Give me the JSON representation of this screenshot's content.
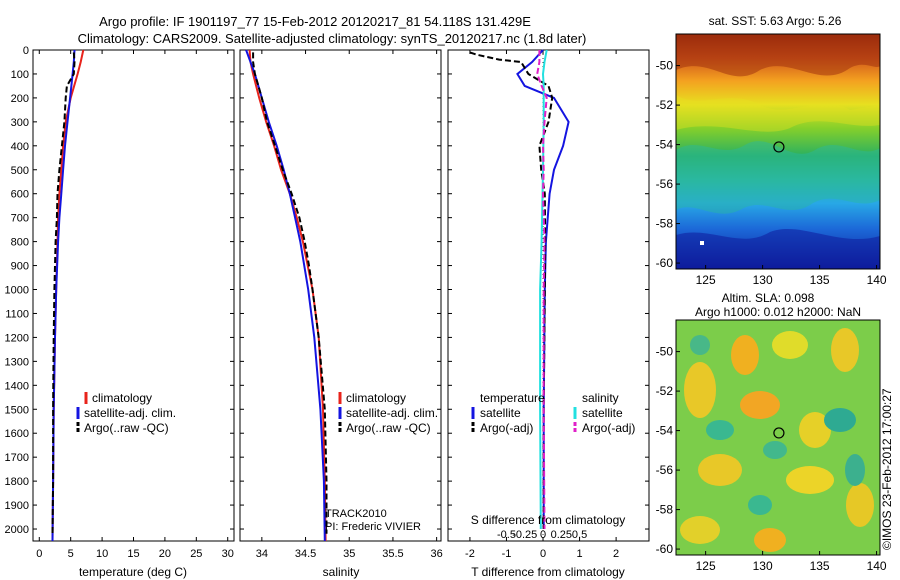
{
  "header": {
    "title_line1": "Argo profile: IF 1901197_77 15-Feb-2012 20120217_81 54.118S 131.429E",
    "title_line2": "Climatology: CARS2009. Satellite-adjusted climatology: synTS_20120217.nc (1.8d later)"
  },
  "colors": {
    "climatology": "#e8231b",
    "satellite": "#1414e0",
    "argo": "#000000",
    "sat_salinity": "#22e0e0",
    "argo_salinity": "#e020c8"
  },
  "depth_axis": {
    "min": 0,
    "max": 2050,
    "ticks": [
      0,
      100,
      200,
      300,
      400,
      500,
      600,
      700,
      800,
      900,
      1000,
      1100,
      1200,
      1300,
      1400,
      1500,
      1600,
      1700,
      1800,
      1900,
      2000
    ],
    "tick_labels": [
      "0",
      "100",
      "200",
      "300",
      "400",
      "500",
      "600",
      "700",
      "800",
      "900",
      "1000",
      "1100",
      "1200",
      "1300",
      "1400",
      "1500",
      "1600",
      "1700",
      "1800",
      "1900",
      "2000"
    ]
  },
  "chart_data": [
    {
      "type": "line",
      "title": "temperature profile",
      "xlabel": "temperature (deg C)",
      "xlim": [
        -1,
        31
      ],
      "ylim": [
        2050,
        0
      ],
      "xticks": [
        0,
        5,
        10,
        15,
        20,
        25,
        30
      ],
      "xtick_labels": [
        "0",
        "5",
        "10",
        "15",
        "20",
        "25",
        "30"
      ],
      "legend": {
        "position": "lower-middle",
        "entries": [
          "climatology",
          "satellite-adj. clim.",
          "Argo(..raw -QC)"
        ]
      },
      "series": [
        {
          "name": "climatology",
          "color": "#e8231b",
          "depth": [
            0,
            50,
            100,
            200,
            300,
            400,
            500,
            600,
            700,
            800,
            1000,
            1200,
            1500,
            1800,
            2050
          ],
          "values": [
            7.0,
            6.6,
            6.1,
            5.0,
            4.2,
            3.8,
            3.5,
            3.2,
            3.0,
            2.9,
            2.7,
            2.5,
            2.3,
            2.2,
            2.1
          ]
        },
        {
          "name": "satellite-adj. clim.",
          "color": "#1414e0",
          "depth": [
            0,
            50,
            100,
            200,
            300,
            400,
            500,
            600,
            700,
            800,
            1000,
            1200,
            1500,
            1800,
            2050
          ],
          "values": [
            5.6,
            5.5,
            5.3,
            4.9,
            4.5,
            4.1,
            3.8,
            3.5,
            3.2,
            3.0,
            2.7,
            2.5,
            2.3,
            2.2,
            2.1
          ]
        },
        {
          "name": "Argo(..raw -QC)",
          "color": "#000000",
          "depth": [
            10,
            50,
            100,
            150,
            200,
            300,
            400,
            500,
            600,
            700,
            800,
            900,
            1000,
            1200,
            1500,
            1800,
            2020
          ],
          "values": [
            5.5,
            5.6,
            5.5,
            4.4,
            4.2,
            4.0,
            3.6,
            3.2,
            2.9,
            2.8,
            2.6,
            2.5,
            2.4,
            2.3,
            2.2,
            2.2,
            2.1
          ]
        }
      ]
    },
    {
      "type": "line",
      "title": "salinity profile",
      "xlabel": "salinity",
      "xlim": [
        33.75,
        36.05
      ],
      "ylim": [
        2050,
        0
      ],
      "xticks": [
        34,
        34.5,
        35,
        35.5,
        36
      ],
      "xtick_labels": [
        "34",
        "34.5",
        "35",
        "35.5",
        "36"
      ],
      "legend": {
        "position": "lower-right",
        "entries": [
          "climatology",
          "satellite-adj. clim.",
          "Argo(..raw -QC)"
        ]
      },
      "annotation": [
        "TRACK2010",
        "PI: Frederic VIVIER"
      ],
      "series": [
        {
          "name": "climatology",
          "color": "#e8231b",
          "depth": [
            0,
            50,
            100,
            200,
            300,
            400,
            500,
            600,
            700,
            800,
            1000,
            1200,
            1500,
            1800,
            2050
          ],
          "values": [
            33.86,
            33.87,
            33.9,
            33.97,
            34.05,
            34.14,
            34.22,
            34.32,
            34.4,
            34.47,
            34.58,
            34.65,
            34.7,
            34.72,
            34.73
          ]
        },
        {
          "name": "satellite-adj. clim.",
          "color": "#1414e0",
          "depth": [
            0,
            50,
            100,
            200,
            300,
            400,
            500,
            600,
            700,
            800,
            1000,
            1200,
            1500,
            1800,
            2050
          ],
          "values": [
            33.82,
            33.87,
            33.92,
            34.0,
            34.08,
            34.17,
            34.25,
            34.32,
            34.38,
            34.44,
            34.53,
            34.6,
            34.67,
            34.71,
            34.72
          ]
        },
        {
          "name": "Argo(..raw -QC)",
          "color": "#000000",
          "depth": [
            10,
            50,
            100,
            150,
            200,
            300,
            400,
            500,
            600,
            700,
            800,
            900,
            1000,
            1200,
            1500,
            1800,
            2020
          ],
          "values": [
            33.9,
            33.9,
            33.92,
            33.96,
            34.0,
            34.06,
            34.15,
            34.24,
            34.34,
            34.43,
            34.49,
            34.54,
            34.58,
            34.65,
            34.72,
            34.74,
            34.74
          ]
        }
      ]
    },
    {
      "type": "line",
      "title": "difference from climatology",
      "xlabel": "T difference from climatology",
      "x2label": "S difference from climatology",
      "xlim": [
        -2.6,
        2.9
      ],
      "ylim": [
        2050,
        0
      ],
      "xticks": [
        -2,
        -1,
        0,
        1,
        2
      ],
      "xtick_labels": [
        "-2",
        "-1",
        "0",
        "1",
        "2"
      ],
      "x2ticks": [
        -0.5,
        -0.25,
        0,
        0.25,
        0.5
      ],
      "x2tick_labels": [
        "-0.5",
        "-0.25",
        "0",
        "0.25",
        "0.5"
      ],
      "legend": {
        "position": "lower-middle",
        "groups": [
          "temperature",
          "salinity"
        ],
        "entries": [
          "satellite",
          "Argo(-adj)",
          "satellite",
          "Argo(-adj)"
        ]
      },
      "series": [
        {
          "name": "temperature satellite",
          "color": "#1414e0",
          "depth": [
            0,
            50,
            100,
            150,
            200,
            250,
            300,
            400,
            500,
            600,
            800,
            1000,
            1500,
            2000
          ],
          "values": [
            0,
            -0.3,
            -0.7,
            -0.5,
            0.3,
            0.5,
            0.7,
            0.55,
            0.3,
            0.18,
            0.08,
            0.05,
            0.02,
            0.02
          ]
        },
        {
          "name": "temperature Argo(-adj)",
          "color": "#000000",
          "depth": [
            10,
            20,
            40,
            50,
            100,
            150,
            200,
            300,
            400,
            500,
            600,
            800,
            1000,
            1500,
            2000
          ],
          "values": [
            -2.0,
            -1.8,
            -1.2,
            -0.6,
            -0.4,
            0.15,
            0.25,
            0.15,
            -0.1,
            -0.05,
            0.05,
            0.06,
            0.05,
            0.02,
            0.02
          ]
        },
        {
          "name": "salinity satellite",
          "color": "#22e0e0",
          "depth": [
            0,
            50,
            100,
            150,
            200,
            300,
            500,
            800,
            1000,
            1500,
            2000
          ],
          "values": [
            0.05,
            0.02,
            0.0,
            0.01,
            0.01,
            0.01,
            0.0,
            -0.02,
            -0.04,
            -0.04,
            -0.03
          ]
        },
        {
          "name": "salinity Argo(-adj)",
          "color": "#e020c8",
          "depth": [
            0,
            50,
            100,
            150,
            200,
            300,
            400,
            500,
            600,
            800,
            1000,
            1500,
            2000
          ],
          "values": [
            -0.05,
            -0.05,
            -0.08,
            -0.02,
            0.05,
            0.02,
            0.0,
            0.01,
            0.0,
            0.02,
            0.01,
            0.01,
            0.02
          ]
        }
      ]
    },
    {
      "type": "heatmap",
      "title": "sat. SST: 5.63 Argo: 5.26",
      "xticks": [
        125,
        130,
        135,
        140
      ],
      "xtick_labels": [
        "125",
        "130",
        "135",
        "140"
      ],
      "yticks": [
        -50,
        -52,
        -54,
        -56,
        -58,
        -60
      ],
      "ytick_labels": [
        "-50",
        "-52",
        "-54",
        "-56",
        "-58",
        "-60"
      ],
      "xlim": [
        122.4,
        140.3
      ],
      "ylim": [
        -60.3,
        -48.4
      ],
      "marker": {
        "lon": 131.43,
        "lat": -54.12
      }
    },
    {
      "type": "heatmap",
      "title": "Altim. SLA: 0.098",
      "subtitle": "Argo h1000: 0.012 h2000: NaN",
      "xticks": [
        125,
        130,
        135,
        140
      ],
      "xtick_labels": [
        "125",
        "130",
        "135",
        "140"
      ],
      "yticks": [
        -50,
        -52,
        -54,
        -56,
        -58,
        -60
      ],
      "ytick_labels": [
        "-50",
        "-52",
        "-54",
        "-56",
        "-58",
        "-60"
      ],
      "xlim": [
        122.4,
        140.3
      ],
      "ylim": [
        -60.3,
        -48.4
      ],
      "marker": {
        "lon": 131.43,
        "lat": -54.12
      }
    }
  ],
  "footer_stamp": "©IMOS 23-Feb-2012 17:00:27"
}
